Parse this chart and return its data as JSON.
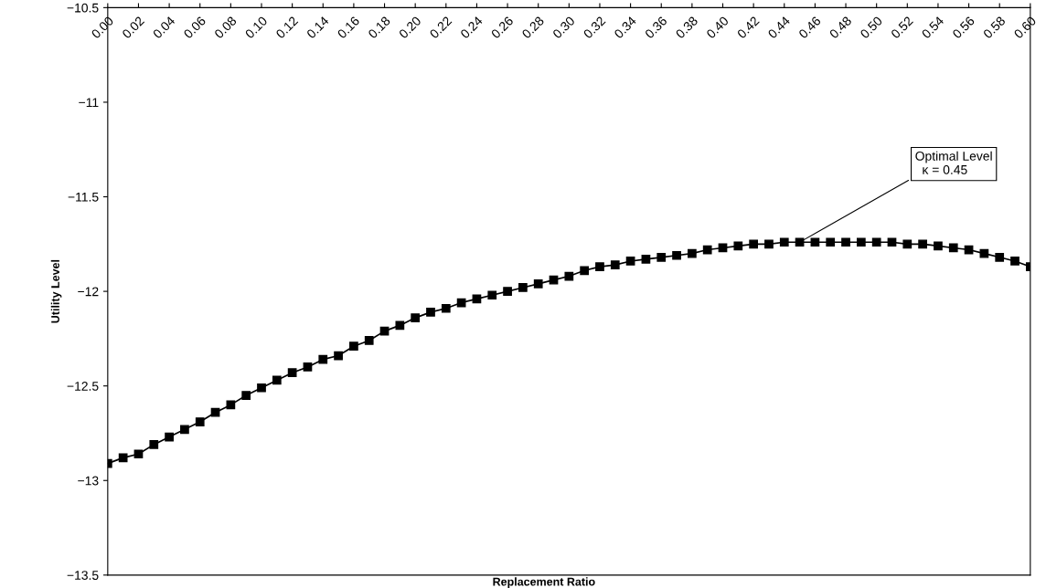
{
  "chart_data": {
    "type": "line",
    "xlabel": "Replacement Ratio",
    "ylabel": "Utility Level",
    "x": [
      0.0,
      0.01,
      0.02,
      0.03,
      0.04,
      0.05,
      0.06,
      0.07,
      0.08,
      0.09,
      0.1,
      0.11,
      0.12,
      0.13,
      0.14,
      0.15,
      0.16,
      0.17,
      0.18,
      0.19,
      0.2,
      0.21,
      0.22,
      0.23,
      0.24,
      0.25,
      0.26,
      0.27,
      0.28,
      0.29,
      0.3,
      0.31,
      0.32,
      0.33,
      0.34,
      0.35,
      0.36,
      0.37,
      0.38,
      0.39,
      0.4,
      0.41,
      0.42,
      0.43,
      0.44,
      0.45,
      0.46,
      0.47,
      0.48,
      0.49,
      0.5,
      0.51,
      0.52,
      0.53,
      0.54,
      0.55,
      0.56,
      0.57,
      0.58,
      0.59,
      0.6
    ],
    "series": [
      {
        "color": "#000000",
        "values": [
          -12.91,
          -12.88,
          -12.86,
          -12.81,
          -12.77,
          -12.73,
          -12.69,
          -12.64,
          -12.6,
          -12.55,
          -12.51,
          -12.47,
          -12.43,
          -12.4,
          -12.36,
          -12.34,
          -12.29,
          -12.26,
          -12.21,
          -12.18,
          -12.14,
          -12.11,
          -12.09,
          -12.06,
          -12.04,
          -12.02,
          -12.0,
          -11.98,
          -11.96,
          -11.94,
          -11.92,
          -11.89,
          -11.87,
          -11.86,
          -11.84,
          -11.83,
          -11.82,
          -11.81,
          -11.8,
          -11.78,
          -11.77,
          -11.76,
          -11.75,
          -11.75,
          -11.74,
          -11.74,
          -11.74,
          -11.74,
          -11.74,
          -11.74,
          -11.74,
          -11.74,
          -11.75,
          -11.75,
          -11.76,
          -11.77,
          -11.78,
          -11.8,
          -11.82,
          -11.84,
          -11.87
        ]
      }
    ],
    "xlim": [
      0,
      0.6
    ],
    "xticks": [
      {
        "value": 0.0,
        "label": "0.00"
      },
      {
        "value": 0.02,
        "label": "0.02"
      },
      {
        "value": 0.04,
        "label": "0.04"
      },
      {
        "value": 0.06,
        "label": "0.06"
      },
      {
        "value": 0.08,
        "label": "0.08"
      },
      {
        "value": 0.1,
        "label": "0.10"
      },
      {
        "value": 0.12,
        "label": "0.12"
      },
      {
        "value": 0.14,
        "label": "0.14"
      },
      {
        "value": 0.16,
        "label": "0.16"
      },
      {
        "value": 0.18,
        "label": "0.18"
      },
      {
        "value": 0.2,
        "label": "0.20"
      },
      {
        "value": 0.22,
        "label": "0.22"
      },
      {
        "value": 0.24,
        "label": "0.24"
      },
      {
        "value": 0.26,
        "label": "0.26"
      },
      {
        "value": 0.28,
        "label": "0.28"
      },
      {
        "value": 0.3,
        "label": "0.30"
      },
      {
        "value": 0.32,
        "label": "0.32"
      },
      {
        "value": 0.34,
        "label": "0.34"
      },
      {
        "value": 0.36,
        "label": "0.36"
      },
      {
        "value": 0.38,
        "label": "0.38"
      },
      {
        "value": 0.4,
        "label": "0.40"
      },
      {
        "value": 0.42,
        "label": "0.42"
      },
      {
        "value": 0.44,
        "label": "0.44"
      },
      {
        "value": 0.46,
        "label": "0.46"
      },
      {
        "value": 0.48,
        "label": "0.48"
      },
      {
        "value": 0.5,
        "label": "0.50"
      },
      {
        "value": 0.52,
        "label": "0.52"
      },
      {
        "value": 0.54,
        "label": "0.54"
      },
      {
        "value": 0.56,
        "label": "0.56"
      },
      {
        "value": 0.58,
        "label": "0.58"
      },
      {
        "value": 0.6,
        "label": "0.60"
      }
    ],
    "ylim": [
      -13.5,
      -10.5
    ],
    "yticks": [
      {
        "value": -13.5,
        "label": "−13.5"
      },
      {
        "value": -13,
        "label": "−13"
      },
      {
        "value": -12.5,
        "label": "−12.5"
      },
      {
        "value": -12,
        "label": "−12"
      },
      {
        "value": -11.5,
        "label": "−11.5"
      },
      {
        "value": -11,
        "label": "−11"
      },
      {
        "value": -10.5,
        "label": "−10.5"
      }
    ],
    "annotations": [
      {
        "text": "Optimal Level\n  κ = 0.45",
        "x": 0.45,
        "y": -11.74
      }
    ],
    "marker": "square",
    "line_style": "solid",
    "grid": false,
    "legend": false
  }
}
